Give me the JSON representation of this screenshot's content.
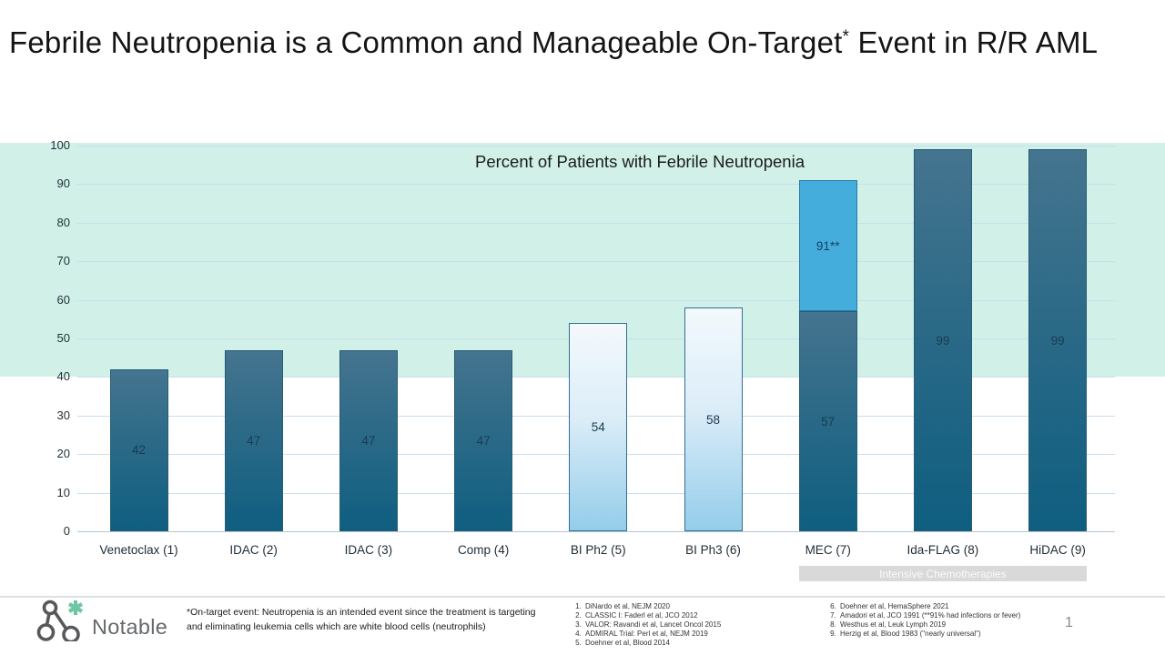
{
  "slide": {
    "title_before": "Febrile Neutropenia is a Common and Manageable On-Target",
    "title_sup": "*",
    "title_after": " Event in R/R AML",
    "page_number": "1"
  },
  "chart_data": {
    "type": "bar",
    "title": "Percent of Patients with Febrile Neutropenia",
    "xlabel": "",
    "ylabel": "",
    "ylim": [
      0,
      100
    ],
    "yticks": [
      0,
      10,
      20,
      30,
      40,
      50,
      60,
      70,
      80,
      90,
      100
    ],
    "grid": true,
    "highlight_band": {
      "from": 40,
      "to": 100,
      "color": "#d1f0e8"
    },
    "categories": [
      "Venetoclax (1)",
      "IDAC (2)",
      "IDAC (3)",
      "Comp (4)",
      "BI Ph2 (5)",
      "BI Ph3 (6)",
      "MEC (7)",
      "Ida-FLAG (8)",
      "HiDAC (9)"
    ],
    "bars": [
      {
        "category": "Venetoclax (1)",
        "segments": [
          {
            "to": 42,
            "label": "42",
            "style": "dark"
          }
        ]
      },
      {
        "category": "IDAC (2)",
        "segments": [
          {
            "to": 47,
            "label": "47",
            "style": "dark"
          }
        ]
      },
      {
        "category": "IDAC (3)",
        "segments": [
          {
            "to": 47,
            "label": "47",
            "style": "dark"
          }
        ]
      },
      {
        "category": "Comp (4)",
        "segments": [
          {
            "to": 47,
            "label": "47",
            "style": "dark"
          }
        ]
      },
      {
        "category": "BI Ph2 (5)",
        "segments": [
          {
            "to": 54,
            "label": "54",
            "style": "light"
          }
        ]
      },
      {
        "category": "BI Ph3 (6)",
        "segments": [
          {
            "to": 58,
            "label": "58",
            "style": "light"
          }
        ]
      },
      {
        "category": "MEC (7)",
        "segments": [
          {
            "to": 57,
            "label": "57",
            "style": "dark"
          },
          {
            "to": 91,
            "label": "91**",
            "style": "accent"
          }
        ]
      },
      {
        "category": "Ida-FLAG (8)",
        "segments": [
          {
            "to": 99,
            "label": "99",
            "style": "dark"
          }
        ]
      },
      {
        "category": "HiDAC (9)",
        "segments": [
          {
            "to": 99,
            "label": "99",
            "style": "dark"
          }
        ]
      }
    ],
    "group_label": {
      "text": "Intensive Chemotherapies",
      "from_category": "MEC (7)",
      "to_category": "HiDAC (9)"
    }
  },
  "colors": {
    "bar_dark_top": "#45748f",
    "bar_dark_bottom": "#0f5e80",
    "bar_light_top": "#f3f9fd",
    "bar_light_bottom": "#94cdea",
    "bar_accent": "#45addc",
    "highlight_band": "#d1f0e8",
    "gridline": "#c9dfeb",
    "group_band_bg": "#d9d9d9",
    "logo_green": "#6fc6a3"
  },
  "footer": {
    "logo_text": "Notable",
    "footnote": "*On-target event: Neutropenia is an intended event since the treatment is targeting and eliminating leukemia cells which are white blood cells (neutrophils)",
    "references_col1": [
      "DiNardo et al, NEJM 2020",
      "CLASSIC I: Faderl et al, JCO 2012",
      "VALOR: Ravandi et al, Lancet Oncol 2015",
      "ADMIRAL Trial: Perl et al, NEJM 2019",
      "Doehner et al, Blood 2014"
    ],
    "references_col2_start": 6,
    "references_col2": [
      "Doehner et al, HemaSphere 2021",
      "Amadori et al, JCO 1991 (**91% had infections or fever)",
      "Westhus et al, Leuk Lymph 2019",
      "Herzig et al, Blood 1983 (\"nearly universal\")"
    ]
  }
}
